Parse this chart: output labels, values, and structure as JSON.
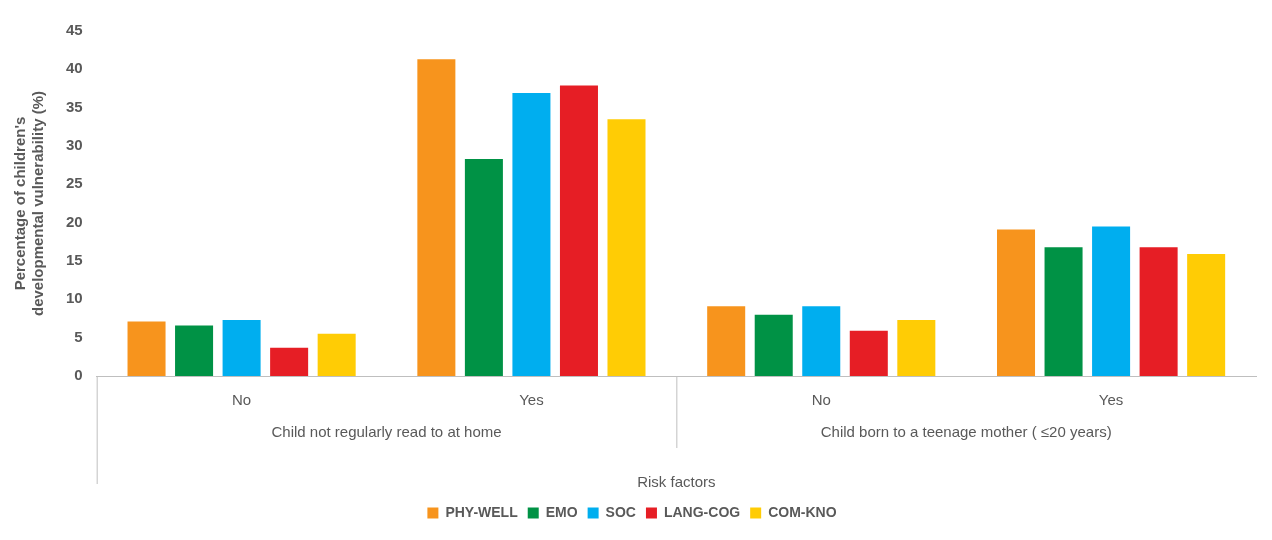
{
  "chart_data": {
    "type": "bar",
    "xlabel": "Risk factors",
    "ylabel": "Percentage of children's developmental vulnerability (%)",
    "categories": [
      "No",
      "Yes",
      "No",
      "Yes"
    ],
    "annotations": [
      "Child not regularly read to at home",
      "Child born to a teenage mother ( ≤20 years)"
    ],
    "ylim": [
      0,
      45
    ],
    "yticks": [
      0,
      5,
      10,
      15,
      20,
      25,
      30,
      35,
      40,
      45
    ],
    "grid": false,
    "legend": "bottom",
    "series": [
      {
        "name": "PHY-WELL",
        "color": "#f7941d",
        "values": [
          7.1,
          41.3,
          9.1,
          19.1
        ]
      },
      {
        "name": "EMO",
        "color": "#009245",
        "values": [
          6.6,
          28.3,
          8.0,
          16.8
        ]
      },
      {
        "name": "SOC",
        "color": "#00aeef",
        "values": [
          7.3,
          36.9,
          9.1,
          19.5
        ]
      },
      {
        "name": "LANG-COG",
        "color": "#e61e25",
        "values": [
          3.7,
          37.9,
          5.9,
          16.8
        ]
      },
      {
        "name": "COM-KNO",
        "color": "#ffcc05",
        "values": [
          5.5,
          33.5,
          7.3,
          15.9
        ]
      }
    ]
  }
}
